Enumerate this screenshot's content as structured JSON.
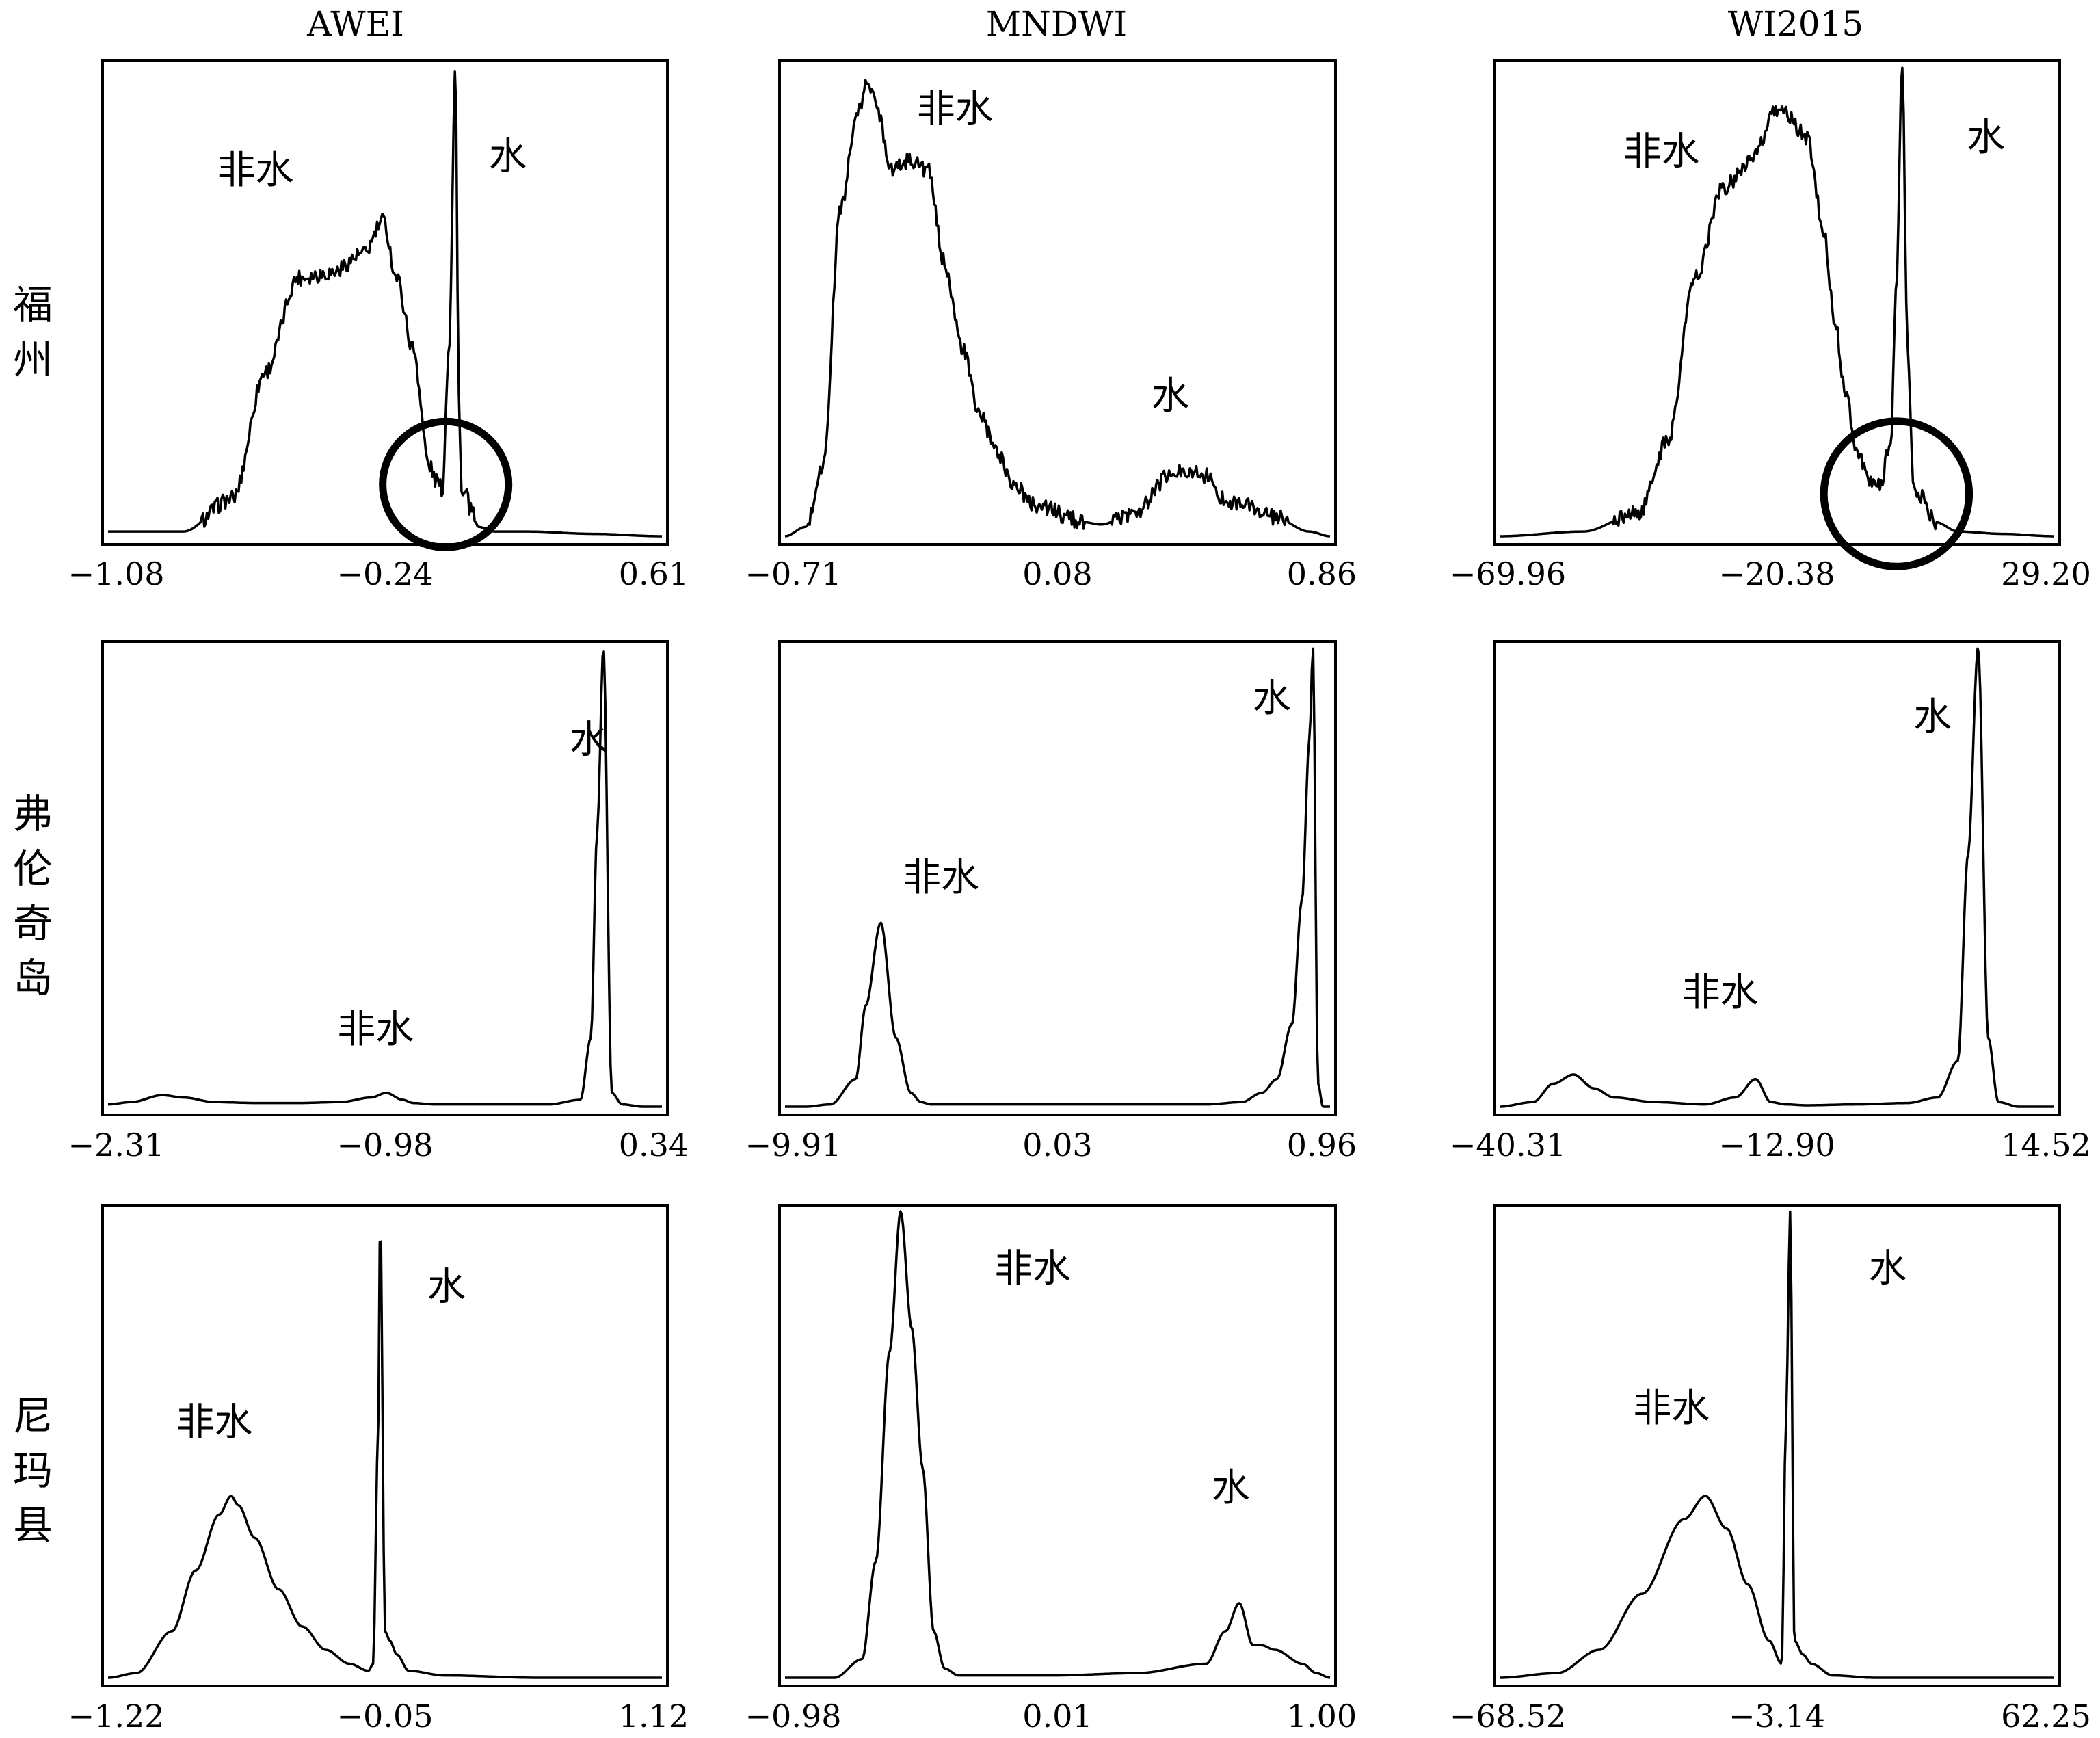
{
  "columns": [
    "AWEI",
    "MNDWI",
    "WI2015"
  ],
  "rows": [
    [
      "福",
      "州"
    ],
    [
      "弗",
      "伦",
      "奇",
      "岛"
    ],
    [
      "尼",
      "玛",
      "县"
    ]
  ],
  "chart_data": [
    {
      "type": "area",
      "title": "AWEI",
      "region": "福州",
      "ticks": [
        "−1.08",
        "−0.24",
        "0.61"
      ],
      "xlim": [
        -1.08,
        0.61
      ],
      "x": [
        -1.08,
        -0.85,
        -0.7,
        -0.6,
        -0.5,
        -0.4,
        -0.3,
        -0.24,
        -0.2,
        -0.15,
        -0.1,
        -0.08,
        -0.06,
        -0.04,
        -0.02,
        -0.01,
        0.0,
        0.01,
        0.03,
        0.05,
        0.1,
        0.2,
        0.4,
        0.61
      ],
      "values": [
        0.01,
        0.01,
        0.08,
        0.35,
        0.55,
        0.56,
        0.6,
        0.67,
        0.55,
        0.4,
        0.15,
        0.12,
        0.1,
        0.4,
        1.0,
        0.3,
        0.08,
        0.09,
        0.05,
        0.02,
        0.01,
        0.01,
        0.005,
        0.0
      ],
      "labels": [
        {
          "text": "非水",
          "x": -0.63,
          "y": 0.75
        },
        {
          "text": "水",
          "x": 0.14,
          "y": 0.78
        }
      ],
      "circle": {
        "x": -0.05,
        "y": 0.11,
        "r": 0.13
      }
    },
    {
      "type": "area",
      "title": "MNDWI",
      "region": "福州",
      "ticks": [
        "−0.71",
        "0.08",
        "0.86"
      ],
      "xlim": [
        -0.71,
        0.86
      ],
      "x": [
        -0.71,
        -0.65,
        -0.6,
        -0.55,
        -0.5,
        -0.47,
        -0.45,
        -0.4,
        -0.35,
        -0.3,
        -0.25,
        -0.2,
        -0.15,
        -0.1,
        -0.05,
        0.0,
        0.05,
        0.1,
        0.15,
        0.2,
        0.3,
        0.4,
        0.45,
        0.5,
        0.55,
        0.6,
        0.7,
        0.8,
        0.86
      ],
      "values": [
        0.0,
        0.02,
        0.15,
        0.7,
        0.9,
        0.97,
        0.92,
        0.78,
        0.8,
        0.78,
        0.58,
        0.4,
        0.26,
        0.18,
        0.11,
        0.07,
        0.06,
        0.04,
        0.03,
        0.025,
        0.05,
        0.13,
        0.14,
        0.13,
        0.08,
        0.07,
        0.04,
        0.01,
        0.0
      ],
      "labels": [
        {
          "text": "非水",
          "x": -0.22,
          "y": 0.88
        },
        {
          "text": "水",
          "x": 0.4,
          "y": 0.27
        }
      ]
    },
    {
      "type": "area",
      "title": "WI2015",
      "region": "福州",
      "ticks": [
        "−69.96",
        "−20.38",
        "29.20"
      ],
      "xlim": [
        -69.96,
        29.2
      ],
      "x": [
        -69.96,
        -55,
        -45,
        -40,
        -35,
        -30,
        -25,
        -20,
        -15,
        -12,
        -10,
        -8,
        -6,
        -4,
        -2,
        0,
        1,
        2,
        3,
        4,
        5,
        8,
        12,
        20,
        29.2
      ],
      "values": [
        0.0,
        0.01,
        0.05,
        0.2,
        0.55,
        0.74,
        0.8,
        0.91,
        0.85,
        0.65,
        0.45,
        0.3,
        0.18,
        0.12,
        0.11,
        0.2,
        0.55,
        1.0,
        0.4,
        0.12,
        0.09,
        0.03,
        0.01,
        0.005,
        0.0
      ],
      "labels": [
        {
          "text": "非水",
          "x": -41,
          "y": 0.79
        },
        {
          "text": "水",
          "x": 17,
          "y": 0.82
        }
      ],
      "circle": {
        "x": 1,
        "y": 0.09,
        "r": 0.15
      }
    },
    {
      "type": "area",
      "title": "AWEI",
      "region": "弗伦奇岛",
      "ticks": [
        "−2.31",
        "−0.98",
        "0.34"
      ],
      "xlim": [
        -2.31,
        0.34
      ],
      "x": [
        -2.31,
        -2.2,
        -2.05,
        -1.95,
        -1.8,
        -1.6,
        -1.4,
        -1.2,
        -1.05,
        -0.98,
        -0.9,
        -0.85,
        -0.75,
        -0.6,
        -0.4,
        -0.2,
        -0.05,
        0.0,
        0.03,
        0.06,
        0.1,
        0.15,
        0.25,
        0.34
      ],
      "values": [
        0.005,
        0.01,
        0.025,
        0.02,
        0.01,
        0.008,
        0.008,
        0.01,
        0.02,
        0.03,
        0.015,
        0.008,
        0.005,
        0.005,
        0.005,
        0.005,
        0.015,
        0.15,
        0.6,
        1.0,
        0.03,
        0.005,
        0.0,
        0.0
      ],
      "labels": [
        {
          "text": "非水",
          "x": -1.03,
          "y": 0.14
        },
        {
          "text": "水",
          "x": -0.01,
          "y": 0.77
        }
      ]
    },
    {
      "type": "area",
      "title": "MNDWI",
      "region": "弗伦奇岛",
      "ticks": [
        "−9.91",
        "0.03",
        "0.96"
      ],
      "xlim": [
        -9.91,
        0.96
      ],
      "x": [
        -9.91,
        -9.5,
        -9.0,
        -8.5,
        -8.3,
        -8.0,
        -7.7,
        -7.4,
        -7.2,
        -7.0,
        -6.5,
        -5.0,
        -3.0,
        -1.5,
        -0.8,
        -0.4,
        -0.1,
        0.2,
        0.4,
        0.55,
        0.62,
        0.72,
        0.82,
        0.96
      ],
      "values": [
        0.0,
        0.0,
        0.005,
        0.06,
        0.22,
        0.4,
        0.15,
        0.03,
        0.01,
        0.005,
        0.005,
        0.005,
        0.005,
        0.005,
        0.01,
        0.03,
        0.06,
        0.18,
        0.45,
        0.8,
        1.0,
        0.05,
        0.0,
        0.0
      ],
      "labels": [
        {
          "text": "非水",
          "x": -6.8,
          "y": 0.47
        },
        {
          "text": "水",
          "x": -0.2,
          "y": 0.86
        }
      ]
    },
    {
      "type": "area",
      "title": "WI2015",
      "region": "弗伦奇岛",
      "ticks": [
        "−40.31",
        "−12.90",
        "14.52"
      ],
      "xlim": [
        -40.31,
        14.52
      ],
      "x": [
        -40.31,
        -37,
        -35,
        -33,
        -31,
        -29,
        -25,
        -20,
        -17,
        -15,
        -13.5,
        -12,
        -10,
        -5,
        0,
        3,
        5,
        6,
        7,
        8,
        9,
        11,
        14.52
      ],
      "values": [
        0.0,
        0.01,
        0.05,
        0.07,
        0.04,
        0.02,
        0.01,
        0.005,
        0.02,
        0.06,
        0.01,
        0.005,
        0.003,
        0.005,
        0.008,
        0.02,
        0.1,
        0.55,
        1.0,
        0.15,
        0.01,
        0.0,
        0.0
      ],
      "labels": [
        {
          "text": "非水",
          "x": -18.5,
          "y": 0.22
        },
        {
          "text": "水",
          "x": 2.5,
          "y": 0.82
        }
      ]
    },
    {
      "type": "area",
      "title": "AWEI",
      "region": "尼玛县",
      "ticks": [
        "−1.22",
        "−0.05",
        "1.12"
      ],
      "xlim": [
        -1.22,
        1.12
      ],
      "x": [
        -1.22,
        -1.1,
        -0.95,
        -0.85,
        -0.75,
        -0.7,
        -0.67,
        -0.6,
        -0.5,
        -0.4,
        -0.3,
        -0.2,
        -0.12,
        -0.1,
        -0.08,
        -0.07,
        -0.05,
        -0.03,
        0.0,
        0.05,
        0.2,
        0.6,
        1.12
      ],
      "values": [
        0.0,
        0.01,
        0.1,
        0.23,
        0.35,
        0.39,
        0.37,
        0.3,
        0.19,
        0.11,
        0.06,
        0.03,
        0.015,
        0.03,
        0.5,
        1.0,
        0.1,
        0.08,
        0.05,
        0.015,
        0.005,
        0.0,
        0.0
      ],
      "labels": [
        {
          "text": "非水",
          "x": -0.77,
          "y": 0.52
        },
        {
          "text": "水",
          "x": 0.21,
          "y": 0.81
        }
      ]
    },
    {
      "type": "area",
      "title": "MNDWI",
      "region": "尼玛县",
      "ticks": [
        "−0.98",
        "0.01",
        "1.00"
      ],
      "xlim": [
        -0.98,
        1.0
      ],
      "x": [
        -0.98,
        -0.8,
        -0.7,
        -0.65,
        -0.6,
        -0.56,
        -0.52,
        -0.48,
        -0.44,
        -0.4,
        -0.35,
        -0.2,
        0.0,
        0.3,
        0.55,
        0.62,
        0.67,
        0.72,
        0.75,
        0.8,
        0.9,
        0.95,
        1.0
      ],
      "values": [
        0.0,
        0.0,
        0.04,
        0.25,
        0.7,
        1.0,
        0.75,
        0.45,
        0.1,
        0.02,
        0.005,
        0.005,
        0.005,
        0.01,
        0.03,
        0.1,
        0.16,
        0.07,
        0.07,
        0.06,
        0.03,
        0.01,
        0.0
      ],
      "labels": [
        {
          "text": "非水",
          "x": -0.08,
          "y": 0.85
        },
        {
          "text": "水",
          "x": 0.64,
          "y": 0.38
        }
      ]
    },
    {
      "type": "area",
      "title": "WI2015",
      "region": "尼玛县",
      "ticks": [
        "−68.52",
        "−3.14",
        "62.25"
      ],
      "xlim": [
        -68.52,
        62.25
      ],
      "x": [
        -68.52,
        -55,
        -45,
        -35,
        -25,
        -20,
        -15,
        -10,
        -5,
        -2,
        -1,
        0,
        1,
        3,
        5,
        10,
        20,
        40,
        62.25
      ],
      "values": [
        0.0,
        0.01,
        0.06,
        0.18,
        0.34,
        0.39,
        0.32,
        0.2,
        0.08,
        0.03,
        0.55,
        1.0,
        0.08,
        0.05,
        0.03,
        0.005,
        0.0,
        0.0,
        0.0
      ],
      "labels": [
        {
          "text": "非水",
          "x": -28,
          "y": 0.55
        },
        {
          "text": "水",
          "x": 23,
          "y": 0.85
        }
      ]
    }
  ]
}
